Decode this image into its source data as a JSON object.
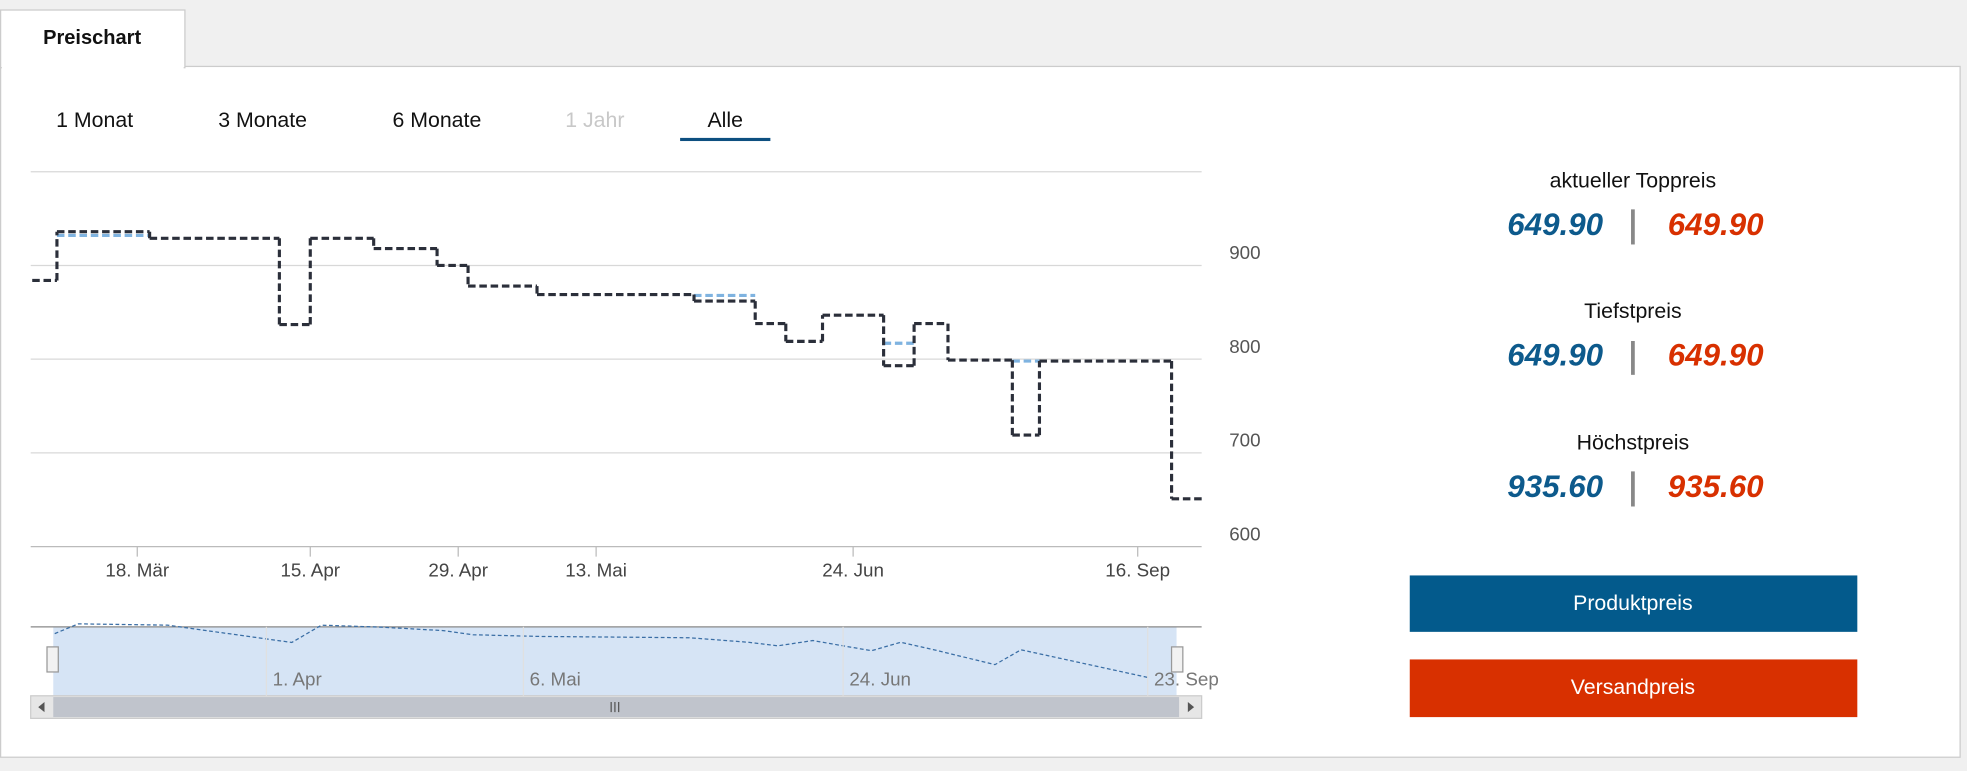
{
  "tab": "Preischart",
  "ranges": [
    "1 Monat",
    "3 Monate",
    "6 Monate",
    "1 Jahr",
    "Alle"
  ],
  "chart_data": {
    "type": "line",
    "step": "after",
    "x": [
      60,
      64,
      79,
      100,
      105,
      111,
      117,
      120,
      127,
      149,
      159,
      164,
      170,
      184,
      193,
      203,
      222,
      230,
      269
    ],
    "xlim": [
      60,
      278
    ],
    "xticks": [
      {
        "value": 77,
        "label": "18. Mär"
      },
      {
        "value": 105,
        "label": "15. Apr"
      },
      {
        "value": 119,
        "label": "29. Apr"
      },
      {
        "value": 133,
        "label": "13. Mai"
      },
      {
        "value": 175,
        "label": "24. Jun"
      },
      {
        "value": 259,
        "label": "16. Sep"
      }
    ],
    "ylim": [
      600,
      1000
    ],
    "yticks": [
      600,
      700,
      800,
      900
    ],
    "grid": true,
    "series": [
      {
        "color": "#2b2f3a",
        "values": [
          884,
          936,
          929,
          837,
          929,
          918,
          900,
          878,
          869,
          862,
          838,
          819,
          847,
          793,
          838,
          799,
          719,
          798,
          651
        ]
      },
      {
        "color": "#7fb3e0",
        "values": [
          null,
          932,
          null,
          null,
          null,
          null,
          null,
          null,
          null,
          868,
          null,
          null,
          null,
          817,
          null,
          null,
          798,
          null,
          null
        ]
      }
    ]
  },
  "navigator": {
    "labels": [
      "1. Apr",
      "6. Mai",
      "24. Jun",
      "23. Sep"
    ]
  },
  "prices": [
    {
      "title": "aktueller Toppreis",
      "product": "649.90",
      "shipping": "649.90"
    },
    {
      "title": "Tiefstpreis",
      "product": "649.90",
      "shipping": "649.90"
    },
    {
      "title": "Höchstpreis",
      "product": "935.60",
      "shipping": "935.60"
    }
  ],
  "buttons": [
    "Produktpreis",
    "Versandpreis"
  ]
}
